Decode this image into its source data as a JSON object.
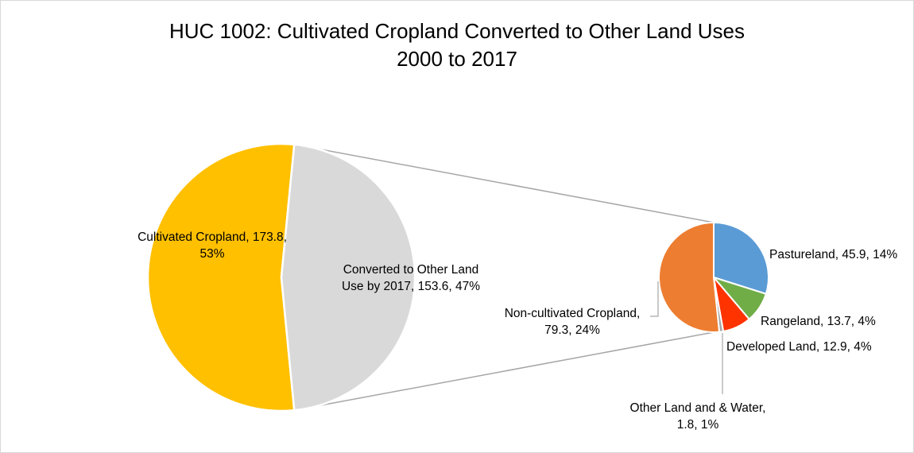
{
  "chart_data": {
    "type": "pie",
    "subtype": "pie-of-pie",
    "title": "HUC 1002: Cultivated Cropland Converted to Other Land Uses",
    "subtitle": "2000 to 2017",
    "primary": {
      "slices": [
        {
          "name": "Cultivated Cropland",
          "value": 173.8,
          "percent": "53%",
          "color": "#FFC000",
          "label_lines": [
            "Cultivated Cropland, 173.8,",
            "53%"
          ]
        },
        {
          "name": "Converted to Other Land Use by 2017",
          "value": 153.6,
          "percent": "47%",
          "color": "#D9D9D9",
          "label_lines": [
            "Converted to Other Land",
            "Use by 2017, 153.6, 47%"
          ]
        }
      ]
    },
    "secondary": {
      "slices": [
        {
          "name": "Pastureland",
          "value": 45.9,
          "percent": "14%",
          "color": "#5B9BD5",
          "label_lines": [
            "Pastureland, 45.9, 14%"
          ]
        },
        {
          "name": "Rangeland",
          "value": 13.7,
          "percent": "4%",
          "color": "#70AD47",
          "label_lines": [
            "Rangeland, 13.7, 4%"
          ]
        },
        {
          "name": "Developed Land",
          "value": 12.9,
          "percent": "4%",
          "color": "#FF3300",
          "label_lines": [
            "Developed Land, 12.9, 4%"
          ]
        },
        {
          "name": "Other Land and & Water",
          "value": 1.8,
          "percent": "1%",
          "color": "#A5A5A5",
          "label_lines": [
            "Other Land and & Water,",
            "1.8, 1%"
          ]
        },
        {
          "name": "Non-cultivated Cropland",
          "value": 79.3,
          "percent": "24%",
          "color": "#ED7D31",
          "label_lines": [
            "Non-cultivated Cropland,",
            "79.3, 24%"
          ]
        }
      ]
    },
    "legend": "none",
    "data_labels": "category name, value, percentage"
  }
}
